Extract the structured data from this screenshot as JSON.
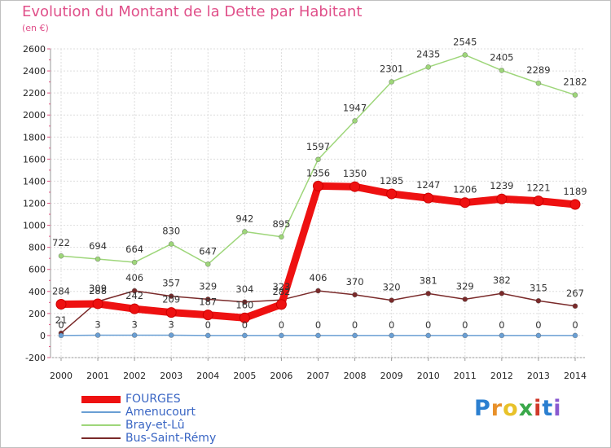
{
  "header": {
    "title": "Evolution du Montant de la Dette par Habitant",
    "subtitle": "(en €)"
  },
  "logo": {
    "text": "Proxiti"
  },
  "chart_data": {
    "type": "line",
    "title": "Evolution du Montant de la Dette par Habitant",
    "subtitle": "(en €)",
    "xlabel": "",
    "ylabel": "",
    "x": [
      "2000",
      "2001",
      "2002",
      "2003",
      "2004",
      "2005",
      "2006",
      "2007",
      "2008",
      "2009",
      "2010",
      "2011",
      "2012",
      "2013",
      "2014"
    ],
    "ylim": [
      -200,
      2600
    ],
    "yticks": [
      -200,
      0,
      200,
      400,
      600,
      800,
      1000,
      1200,
      1400,
      1600,
      1800,
      2000,
      2200,
      2400,
      2600
    ],
    "grid": true,
    "legend_position": "bottom-left",
    "series": [
      {
        "name": "FOURGES",
        "color": "#ee1111",
        "values": [
          284,
          288,
          242,
          209,
          187,
          160,
          282,
          1356,
          1350,
          1285,
          1247,
          1206,
          1239,
          1221,
          1189
        ]
      },
      {
        "name": "Amenucourt",
        "color": "#6a9fd4",
        "values": [
          0,
          3,
          3,
          3,
          0,
          0,
          0,
          0,
          0,
          0,
          0,
          0,
          0,
          0,
          0
        ]
      },
      {
        "name": "Bray-et-Lû",
        "color": "#9ed67a",
        "values": [
          722,
          694,
          664,
          830,
          647,
          942,
          895,
          1597,
          1947,
          2301,
          2435,
          2545,
          2405,
          2289,
          2182
        ]
      },
      {
        "name": "Bus-Saint-Rémy",
        "color": "#7a2a2a",
        "values": [
          21,
          309,
          406,
          357,
          329,
          304,
          323,
          406,
          370,
          320,
          381,
          329,
          382,
          315,
          267
        ]
      }
    ]
  }
}
